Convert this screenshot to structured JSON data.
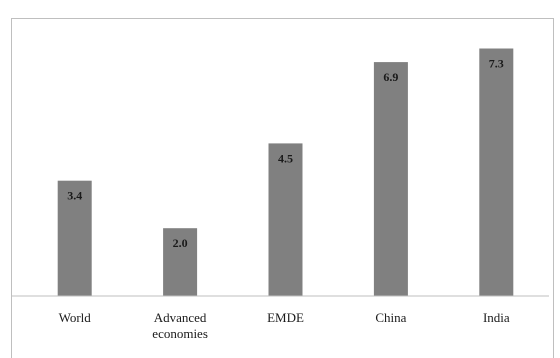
{
  "chart_data": {
    "type": "bar",
    "title": "",
    "xlabel": "",
    "ylabel": "",
    "categories": [
      "World",
      "Advanced economies",
      "EMDE",
      "China",
      "India"
    ],
    "category_lines": [
      [
        "World"
      ],
      [
        "Advanced",
        "economies"
      ],
      [
        "EMDE"
      ],
      [
        "China"
      ],
      [
        "India"
      ]
    ],
    "values": [
      3.4,
      2.0,
      4.5,
      6.9,
      7.3
    ],
    "value_labels": [
      "3.4",
      "2.0",
      "4.5",
      "6.9",
      "7.3"
    ],
    "ylim": [
      0,
      8.2
    ],
    "grid": false,
    "legend": "none",
    "bar_color": "#808080",
    "axis_color": "#bfbfbf"
  }
}
